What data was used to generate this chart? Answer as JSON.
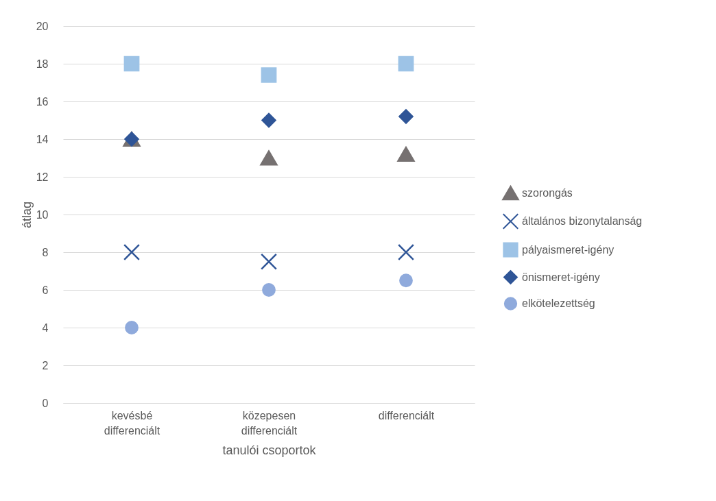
{
  "chart_data": {
    "type": "scatter",
    "xlabel": "tanulói csoportok",
    "ylabel": "átlag",
    "categories": [
      "kevésbé differenciált",
      "közepesen differenciált",
      "differenciált"
    ],
    "series": [
      {
        "name": "szorongás",
        "color": "#767171",
        "marker": "triangle",
        "values": [
          14,
          13,
          13.2
        ]
      },
      {
        "name": "általános bizonytalanság",
        "color": "#2f5597",
        "marker": "cross",
        "values": [
          8,
          7.5,
          8
        ]
      },
      {
        "name": "pályaismeret-igény",
        "color": "#9dc3e6",
        "marker": "square",
        "values": [
          18,
          17.4,
          18
        ]
      },
      {
        "name": "önismeret-igény",
        "color": "#2f5597",
        "marker": "diamond",
        "values": [
          14,
          15,
          15.2
        ]
      },
      {
        "name": "elkötelezettség",
        "color": "#8faadc",
        "marker": "circle",
        "values": [
          4,
          6,
          6.5
        ]
      }
    ],
    "ylim": [
      0,
      20
    ],
    "yticks": [
      0,
      2,
      4,
      6,
      8,
      10,
      12,
      14,
      16,
      18,
      20
    ],
    "grid": "y",
    "legend": "right"
  }
}
